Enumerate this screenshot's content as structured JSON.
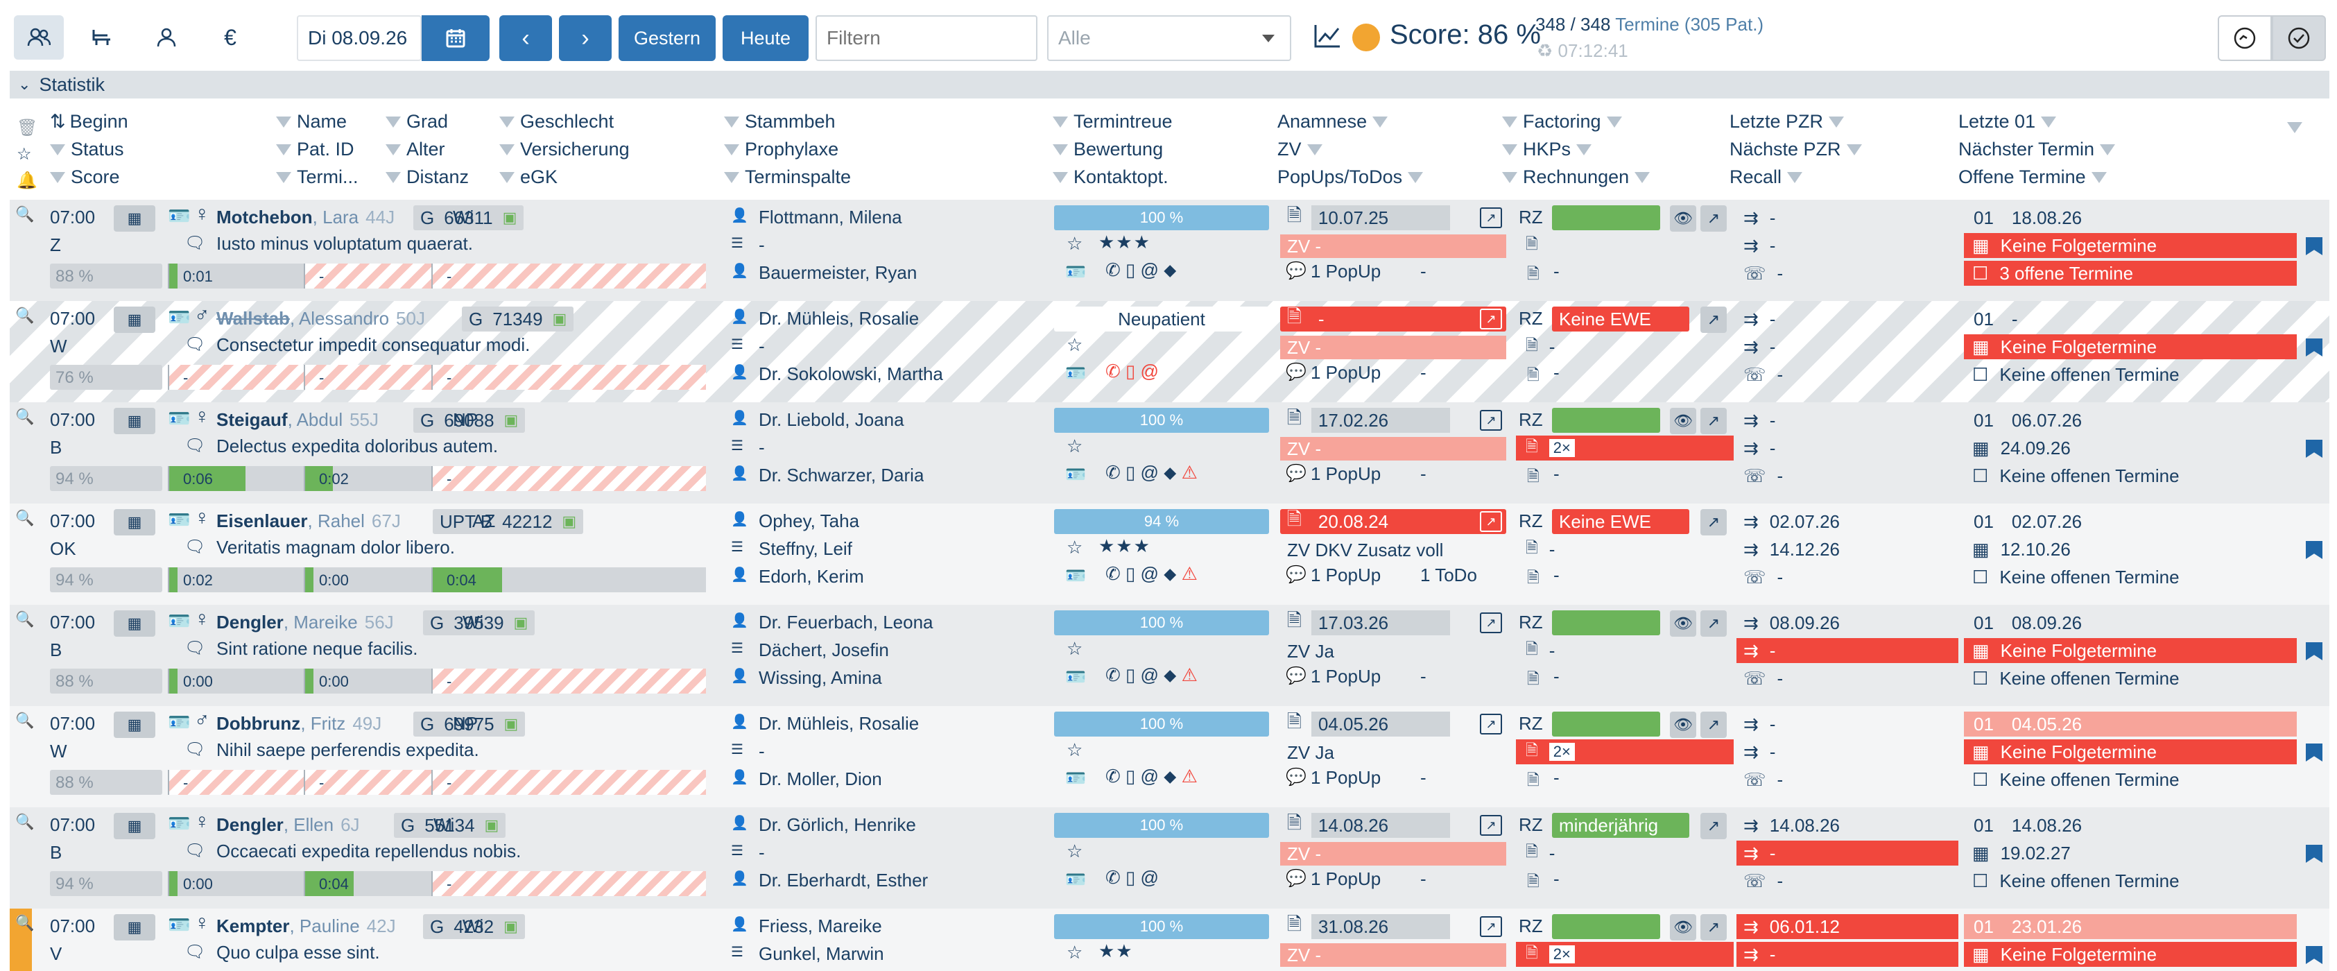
{
  "toolbar": {
    "date": "Di 08.09.26",
    "yesterday": "Gestern",
    "today": "Heute",
    "filter_placeholder": "Filtern",
    "select_value": "Alle",
    "score_label": "Score: 86 %",
    "appointments": "348 / 348",
    "appointments_label": "Termine",
    "patients": "(305 Pat.)",
    "time": "07:12:41"
  },
  "section": {
    "title": "Statistik"
  },
  "headers": {
    "c1": [
      "Beginn",
      "Status",
      "Score"
    ],
    "c2": [
      "Name",
      "Pat. ID",
      "Termi..."
    ],
    "c3": [
      "Grad",
      "Alter",
      "Distanz"
    ],
    "c4": [
      "Geschlecht",
      "Versicherung",
      "eGK"
    ],
    "c5": [
      "Stammbeh",
      "Prophylaxe",
      "Terminspalte"
    ],
    "c6": [
      "Termintreue",
      "Bewertung",
      "Kontaktopt."
    ],
    "c7": [
      "Anamnese",
      "ZV",
      "PopUps/ToDos"
    ],
    "c8": [
      "Factoring",
      "HKPs",
      "Rechnungen"
    ],
    "c9": [
      "Letzte PZR",
      "Nächste PZR",
      "Recall"
    ],
    "c10": [
      "Letzte 01",
      "Nächster Termin",
      "Offene Termine"
    ]
  },
  "rows": [
    {
      "time": "07:00",
      "status": "Z",
      "score": "88 %",
      "name": "Motchebon",
      "first": ", Lara",
      "age": "44J",
      "grade": "G",
      "id": "66311",
      "ins": "Wi",
      "note": "Iusto minus voluptatum quaerat.",
      "t1": "0:01",
      "t2": "-",
      "t3": "-",
      "doc1": "Flottmann, Milena",
      "doc2": "-",
      "doc3": "Bauermeister, Ryan",
      "treue": "100 %",
      "stars": "★★★",
      "anam": "10.07.25",
      "zv": "ZV -",
      "popup": "1 PopUp",
      "todo": "-",
      "rz": "RZ",
      "fact": "",
      "hkp": "",
      "rech": "-",
      "lpzr": "-",
      "npzr": "-",
      "recall": "-",
      "l01": "01",
      "l01d": "18.08.26",
      "next": "Keine Folgetermine",
      "open": "3 offene Termine"
    },
    {
      "time": "07:00",
      "status": "W",
      "score": "76 %",
      "name": "Wallstab",
      "first": ", Alessandro",
      "age": "50J",
      "grade": "G",
      "id": "71349",
      "ins": "",
      "note": "Consectetur impedit consequatur modi.",
      "t1": "-",
      "t2": "-",
      "t3": "-",
      "doc1": "Dr. Mühleis, Rosalie",
      "doc2": "-",
      "doc3": "Dr. Sokolowski, Martha",
      "treue": "Neupatient",
      "stars": "",
      "anam": "-",
      "zv": "ZV -",
      "popup": "1 PopUp",
      "todo": "-",
      "rz": "RZ",
      "fact": "Keine EWE",
      "hkp": "-",
      "rech": "-",
      "lpzr": "-",
      "npzr": "-",
      "recall": "-",
      "l01": "01",
      "l01d": "-",
      "next": "Keine Folgetermine",
      "open": "Keine offenen Termine"
    },
    {
      "time": "07:00",
      "status": "B",
      "score": "94 %",
      "name": "Steigauf",
      "first": ", Abdul",
      "age": "55J",
      "grade": "G",
      "id": "69088",
      "ins": "NP",
      "note": "Delectus expedita doloribus autem.",
      "t1": "0:06",
      "t2": "0:02",
      "t3": "-",
      "doc1": "Dr. Liebold, Joana",
      "doc2": "-",
      "doc3": "Dr. Schwarzer, Daria",
      "treue": "100 %",
      "stars": "",
      "anam": "17.02.26",
      "zv": "ZV -",
      "popup": "1 PopUp",
      "todo": "-",
      "rz": "RZ",
      "fact": "",
      "hkp": "2×",
      "rech": "-",
      "lpzr": "-",
      "npzr": "-",
      "recall": "-",
      "l01": "01",
      "l01d": "06.07.26",
      "next": "24.09.26",
      "open": "Keine offenen Termine"
    },
    {
      "time": "07:00",
      "status": "OK",
      "score": "94 %",
      "name": "Eisenlauer",
      "first": ", Rahel",
      "age": "67J",
      "grade": "UPT  B",
      "id": "42212",
      "ins": "AZ",
      "note": "Veritatis magnam dolor libero.",
      "t1": "0:02",
      "t2": "0:00",
      "t3": "0:04",
      "doc1": "Ophey, Taha",
      "doc2": "Steffny, Leif",
      "doc3": "Edorh, Kerim",
      "treue": "94 %",
      "stars": "★★★",
      "anam": "20.08.24",
      "zv": "ZV  DKV Zusatz voll",
      "popup": "1 PopUp",
      "todo": "1 ToDo",
      "rz": "RZ",
      "fact": "Keine EWE",
      "hkp": "-",
      "rech": "-",
      "lpzr": "02.07.26",
      "npzr": "14.12.26",
      "recall": "-",
      "l01": "01",
      "l01d": "02.07.26",
      "next": "12.10.26",
      "open": "Keine offenen Termine"
    },
    {
      "time": "07:00",
      "status": "B",
      "score": "88 %",
      "name": "Dengler",
      "first": ", Mareike",
      "age": "56J",
      "grade": "G",
      "id": "39539",
      "ins": "Wi",
      "note": "Sint ratione neque facilis.",
      "t1": "0:00",
      "t2": "0:00",
      "t3": "-",
      "doc1": "Dr. Feuerbach, Leona",
      "doc2": "Dächert, Josefin",
      "doc3": "Wissing, Amina",
      "treue": "100 %",
      "stars": "",
      "anam": "17.03.26",
      "zv": "ZV  Ja",
      "popup": "1 PopUp",
      "todo": "-",
      "rz": "RZ",
      "fact": "",
      "hkp": "-",
      "rech": "-",
      "lpzr": "08.09.26",
      "npzr": "-",
      "recall": "-",
      "l01": "01",
      "l01d": "08.09.26",
      "next": "Keine Folgetermine",
      "open": "Keine offenen Termine"
    },
    {
      "time": "07:00",
      "status": "W",
      "score": "88 %",
      "name": "Dobbrunz",
      "first": ", Fritz",
      "age": "49J",
      "grade": "G",
      "id": "69975",
      "ins": "NP",
      "note": "Nihil saepe perferendis expedita.",
      "t1": "-",
      "t2": "-",
      "t3": "-",
      "doc1": "Dr. Mühleis, Rosalie",
      "doc2": "-",
      "doc3": "Dr. Moller, Dion",
      "treue": "100 %",
      "stars": "",
      "anam": "04.05.26",
      "zv": "ZV  Ja",
      "popup": "1 PopUp",
      "todo": "-",
      "rz": "RZ",
      "fact": "",
      "hkp": "2×",
      "rech": "-",
      "lpzr": "-",
      "npzr": "-",
      "recall": "-",
      "l01": "01",
      "l01d": "04.05.26",
      "next": "Keine Folgetermine",
      "open": "Keine offenen Termine"
    },
    {
      "time": "07:00",
      "status": "B",
      "score": "94 %",
      "name": "Dengler",
      "first": ", Ellen",
      "age": "6J",
      "grade": "G",
      "id": "55134",
      "ins": "Wi",
      "note": "Occaecati expedita repellendus nobis.",
      "t1": "0:00",
      "t2": "0:04",
      "t3": "-",
      "doc1": "Dr. Görlich, Henrike",
      "doc2": "-",
      "doc3": "Dr. Eberhardt, Esther",
      "treue": "100 %",
      "stars": "",
      "anam": "14.08.26",
      "zv": "ZV -",
      "popup": "1 PopUp",
      "todo": "-",
      "rz": "RZ",
      "fact": "minderjährig",
      "hkp": "-",
      "rech": "-",
      "lpzr": "14.08.26",
      "npzr": "-",
      "recall": "-",
      "l01": "01",
      "l01d": "14.08.26",
      "next": "19.02.27",
      "open": "Keine offenen Termine"
    },
    {
      "time": "07:00",
      "status": "V",
      "score": "",
      "name": "Kempter",
      "first": ", Pauline",
      "age": "42J",
      "grade": "G",
      "id": "4232",
      "ins": "Wi",
      "note": "Quo culpa esse sint.",
      "t1": "",
      "t2": "",
      "t3": "",
      "doc1": "Friess, Mareike",
      "doc2": "Gunkel, Marwin",
      "doc3": "",
      "treue": "100 %",
      "stars": "★★",
      "anam": "31.08.26",
      "zv": "ZV -",
      "popup": "",
      "todo": "",
      "rz": "RZ",
      "fact": "",
      "hkp": "2×",
      "rech": "",
      "lpzr": "06.01.12",
      "npzr": "-",
      "recall": "",
      "l01": "01",
      "l01d": "23.01.26",
      "next": "Keine Folgetermine",
      "open": ""
    }
  ]
}
